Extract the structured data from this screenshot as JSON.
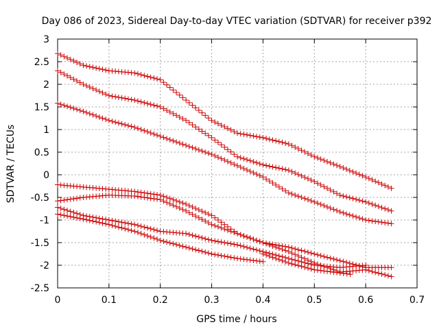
{
  "chart_data": {
    "type": "scatter",
    "title": "Day 086 of 2023, Sidereal Day-to-day VTEC variation (SDTVAR) for receiver p392",
    "xlabel": "GPS time / hours",
    "ylabel": "SDTVAR / TECUs",
    "xlim": [
      0,
      0.7
    ],
    "ylim": [
      -2.5,
      3
    ],
    "xticks": [
      0,
      0.1,
      0.2,
      0.3,
      0.4,
      0.5,
      0.6,
      0.7
    ],
    "xtick_labels": [
      "0",
      "0.1",
      "0.2",
      "0.3",
      "0.4",
      "0.5",
      "0.6",
      "0.7"
    ],
    "yticks": [
      -2.5,
      -2,
      -1.5,
      -1,
      -0.5,
      0,
      0.5,
      1,
      1.5,
      2,
      2.5,
      3
    ],
    "ytick_labels": [
      "-2.5",
      "-2",
      "-1.5",
      "-1",
      "-0.5",
      "0",
      "0.5",
      "1",
      "1.5",
      "2",
      "2.5",
      "3"
    ],
    "grid": true,
    "marker": "+",
    "marker_color": "#cc0000",
    "series": [
      {
        "name": "s1",
        "points": [
          [
            0,
            2.68
          ],
          [
            0.05,
            2.42
          ],
          [
            0.1,
            2.3
          ],
          [
            0.15,
            2.25
          ],
          [
            0.2,
            2.1
          ],
          [
            0.25,
            1.65
          ],
          [
            0.3,
            1.2
          ],
          [
            0.35,
            0.92
          ],
          [
            0.4,
            0.82
          ],
          [
            0.45,
            0.68
          ],
          [
            0.5,
            0.4
          ],
          [
            0.55,
            0.18
          ],
          [
            0.6,
            -0.05
          ],
          [
            0.65,
            -0.3
          ]
        ]
      },
      {
        "name": "s2",
        "points": [
          [
            0,
            2.3
          ],
          [
            0.05,
            2.0
          ],
          [
            0.1,
            1.75
          ],
          [
            0.15,
            1.65
          ],
          [
            0.2,
            1.5
          ],
          [
            0.25,
            1.2
          ],
          [
            0.3,
            0.82
          ],
          [
            0.35,
            0.4
          ],
          [
            0.4,
            0.22
          ],
          [
            0.45,
            0.1
          ],
          [
            0.5,
            -0.15
          ],
          [
            0.55,
            -0.45
          ],
          [
            0.6,
            -0.6
          ],
          [
            0.65,
            -0.8
          ]
        ]
      },
      {
        "name": "s3",
        "points": [
          [
            0,
            1.58
          ],
          [
            0.05,
            1.4
          ],
          [
            0.1,
            1.2
          ],
          [
            0.15,
            1.05
          ],
          [
            0.2,
            0.85
          ],
          [
            0.25,
            0.65
          ],
          [
            0.3,
            0.45
          ],
          [
            0.35,
            0.2
          ],
          [
            0.4,
            -0.05
          ],
          [
            0.45,
            -0.4
          ],
          [
            0.5,
            -0.6
          ],
          [
            0.55,
            -0.82
          ],
          [
            0.6,
            -1.0
          ],
          [
            0.65,
            -1.08
          ]
        ]
      },
      {
        "name": "s4",
        "points": [
          [
            0,
            -0.22
          ],
          [
            0.05,
            -0.27
          ],
          [
            0.1,
            -0.32
          ],
          [
            0.15,
            -0.37
          ],
          [
            0.2,
            -0.45
          ],
          [
            0.25,
            -0.65
          ],
          [
            0.3,
            -0.9
          ],
          [
            0.35,
            -1.3
          ],
          [
            0.4,
            -1.5
          ],
          [
            0.45,
            -1.6
          ],
          [
            0.5,
            -1.75
          ],
          [
            0.55,
            -1.9
          ],
          [
            0.6,
            -2.05
          ],
          [
            0.65,
            -2.05
          ]
        ]
      },
      {
        "name": "s5",
        "points": [
          [
            0,
            -0.58
          ],
          [
            0.05,
            -0.5
          ],
          [
            0.1,
            -0.45
          ],
          [
            0.15,
            -0.47
          ],
          [
            0.2,
            -0.55
          ],
          [
            0.25,
            -0.8
          ],
          [
            0.3,
            -1.1
          ],
          [
            0.35,
            -1.3
          ],
          [
            0.4,
            -1.5
          ],
          [
            0.45,
            -1.7
          ],
          [
            0.5,
            -1.95
          ],
          [
            0.55,
            -2.15
          ],
          [
            0.6,
            -2.1
          ],
          [
            0.65,
            -2.25
          ]
        ]
      },
      {
        "name": "s6",
        "points": [
          [
            0,
            -0.72
          ],
          [
            0.05,
            -0.9
          ],
          [
            0.1,
            -1.0
          ],
          [
            0.15,
            -1.1
          ],
          [
            0.2,
            -1.25
          ],
          [
            0.25,
            -1.3
          ],
          [
            0.3,
            -1.45
          ],
          [
            0.35,
            -1.55
          ],
          [
            0.4,
            -1.7
          ],
          [
            0.45,
            -1.85
          ],
          [
            0.5,
            -2.0
          ],
          [
            0.55,
            -2.05
          ],
          [
            0.6,
            -2.0
          ]
        ]
      },
      {
        "name": "s7",
        "points": [
          [
            0,
            -0.87
          ],
          [
            0.05,
            -0.98
          ],
          [
            0.1,
            -1.1
          ],
          [
            0.15,
            -1.25
          ],
          [
            0.2,
            -1.45
          ],
          [
            0.25,
            -1.6
          ],
          [
            0.3,
            -1.75
          ],
          [
            0.35,
            -1.85
          ],
          [
            0.4,
            -1.92
          ]
        ]
      },
      {
        "name": "s8",
        "points": [
          [
            0.4,
            -1.75
          ],
          [
            0.45,
            -1.95
          ],
          [
            0.5,
            -2.1
          ],
          [
            0.55,
            -2.17
          ],
          [
            0.57,
            -2.2
          ]
        ]
      }
    ]
  }
}
